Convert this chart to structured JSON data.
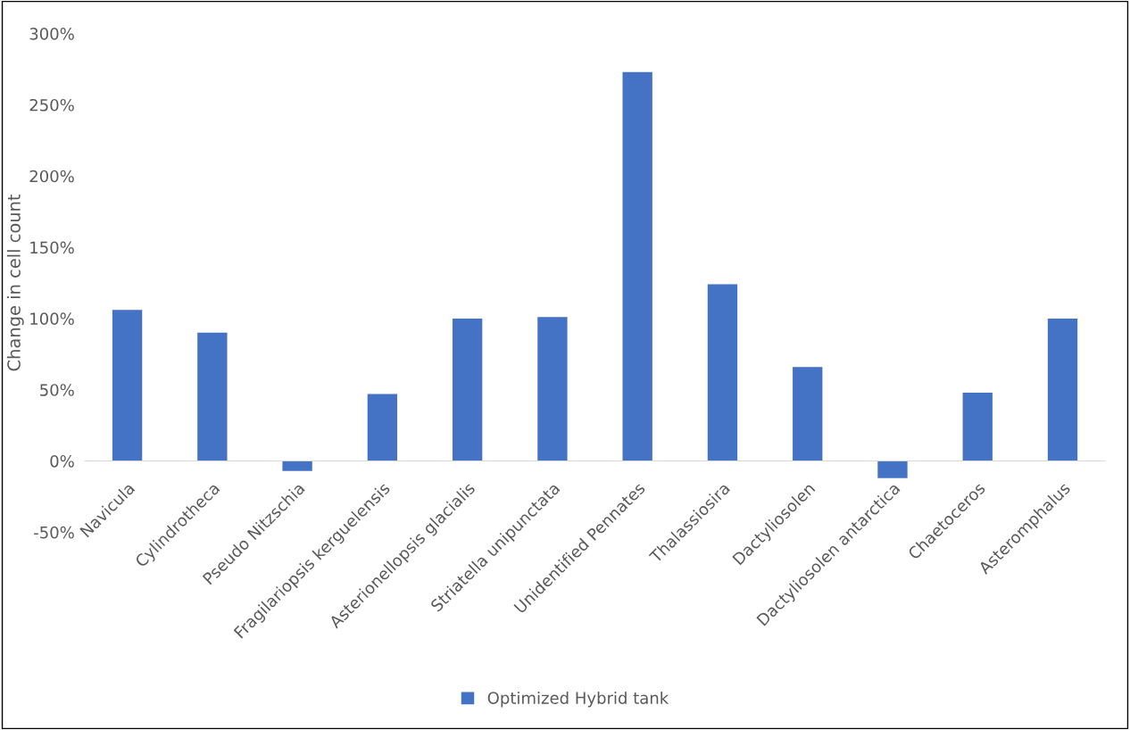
{
  "chart_data": {
    "type": "bar",
    "ylabel": "Change in cell count",
    "categories": [
      "Navicula",
      "Cylindrotheca",
      "Pseudo Nitzschia",
      "Fragilariopsis kerguelensis",
      "Asterionellopsis glacialis",
      "Striatella unipunctata",
      "Unidentified Pennates",
      "Thalassiosira",
      "Dactyliosolen",
      "Dactyliosolen antarctica",
      "Chaetoceros",
      "Asteromphalus"
    ],
    "series": [
      {
        "name": "Optimized Hybrid tank",
        "color": "#4472c4",
        "values": [
          106,
          90,
          -7,
          47,
          100,
          101,
          273,
          124,
          66,
          -12,
          48,
          100
        ]
      }
    ],
    "ylim": [
      -50,
      300
    ],
    "yticks": [
      {
        "value": -50,
        "label": "-50%"
      },
      {
        "value": 0,
        "label": "0%"
      },
      {
        "value": 50,
        "label": "50%"
      },
      {
        "value": 100,
        "label": "100%"
      },
      {
        "value": 150,
        "label": "150%"
      },
      {
        "value": 200,
        "label": "200%"
      },
      {
        "value": 250,
        "label": "250%"
      },
      {
        "value": 300,
        "label": "300%"
      }
    ],
    "grid": false,
    "legend": "bottom"
  }
}
